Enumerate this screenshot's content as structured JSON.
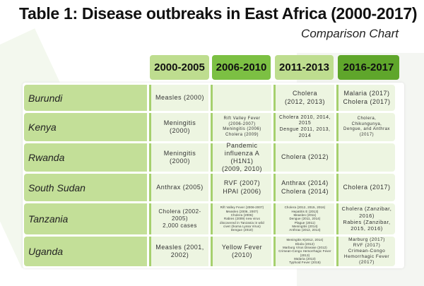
{
  "title": "Table 1: Disease outbreaks in East Africa (2000-2017)",
  "subtitle": "Comparison Chart",
  "columns": [
    {
      "label": "2000-2005",
      "color": "#bedd8f"
    },
    {
      "label": "2006-2010",
      "color": "#7cc043"
    },
    {
      "label": "2011-2013",
      "color": "#bedd8f"
    },
    {
      "label": "2016-2017",
      "color": "#5fa62b"
    }
  ],
  "rows": [
    {
      "country": "Burundi",
      "cells": [
        "Measles (2000)",
        "",
        "Cholera\n(2012, 2013)",
        "Malaria (2017)\nCholera (2017)"
      ]
    },
    {
      "country": "Kenya",
      "cells": [
        "Meningitis (2000)",
        "Rift Valley Fever\n(2006-2007)\nMeningitis (2006)\nCholera (2009)",
        "Cholera 2010, 2014,\n2015\nDengue 2011, 2013,\n2014",
        "Cholera,\nChikungunya,\nDengue, and Anthrax\n(2017)"
      ]
    },
    {
      "country": "Rwanda",
      "cells": [
        "Meningitis (2000)",
        "Pandemic\ninfluenza A (H1N1)\n(2009, 2010)",
        "Cholera (2012)",
        ""
      ]
    },
    {
      "country": "South Sudan",
      "cells": [
        "Anthrax (2005)",
        "RVF (2007)\nHPAI (2006)",
        "Anthrax (2014)\nCholera (2014)",
        "Cholera (2017)"
      ]
    },
    {
      "country": "Tanzania",
      "cells": [
        "Cholera (2002-\n2005)\n2,000 cases",
        "Rift Valley Fever (2006-2007)\nMeasles (2006, 2007)\nCholera (2006)\nRabies (2009) new virus\ndiscovered in Tanzania in wild\ncivet (Ikoma Lyssa Virus)\nDengue (2010)",
        "Cholera (2012, 2015, 2016)\nHepatitis E (2013)\nMeasles (2011)\nDengue (2011, 2014)\nPlague (2011)\nMeningitis (2014)\nAnthrax (2012, 2014)",
        "Cholera (Zanzibar,\n2016)\nRabies (Zanzibar,\n2015, 2016)"
      ]
    },
    {
      "country": "Uganda",
      "cells": [
        "Measles (2001,\n2002)",
        "Yellow Fever\n(2010)",
        "Meningitis 9(2012, 2014)\nEbola (2012)\nMarburg Virus Disease (2012)\nCrimean-Congo Hemorrhagic Fever\n(2013)\nMalaria (2013)\nTyphoid Fever (2015)",
        "Marburg (2017)\nRVF (2017)\nCrimean-Congo\nHemorrhagic Fever (2017)"
      ]
    }
  ]
}
